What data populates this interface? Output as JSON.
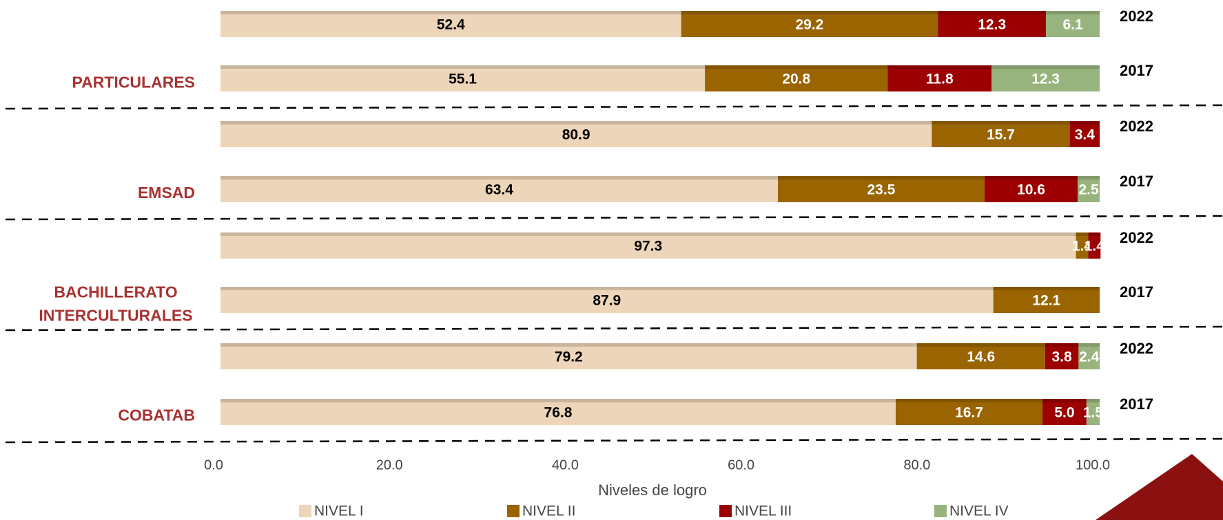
{
  "chart_data": {
    "type": "stacked_barh",
    "categories": [
      "2022",
      "2017",
      "2022",
      "2017",
      "2022",
      "2017",
      "2022",
      "2017"
    ],
    "groups": [
      [
        "PARTICULARES"
      ],
      [
        "EMSAD"
      ],
      [
        "BACHILLERATO",
        "INTERCULTURALES"
      ],
      [
        "COBATAB"
      ]
    ],
    "series": [
      {
        "name": "NIVEL I",
        "color": "#ecd5b8",
        "label_color": "#000000",
        "values": [
          52.4,
          55.1,
          80.9,
          63.4,
          97.3,
          87.9,
          79.2,
          76.8
        ],
        "value_labels": [
          "52.4",
          "55.1",
          "80.9",
          "63.4",
          "97.3",
          "87.9",
          "79.2",
          "76.8"
        ]
      },
      {
        "name": "NIVEL II",
        "color": "#9a6400",
        "label_color": "#ffffff",
        "values": [
          29.2,
          20.8,
          15.7,
          23.5,
          1.4,
          12.1,
          14.6,
          16.7
        ],
        "value_labels": [
          "29.2",
          "20.8",
          "15.7",
          "23.5",
          "1.4",
          "12.1",
          "14.6",
          "16.7"
        ]
      },
      {
        "name": "NIVEL III",
        "color": "#9c0000",
        "label_color": "#ffffff",
        "values": [
          12.3,
          11.8,
          3.4,
          10.6,
          1.4,
          null,
          3.8,
          5.0
        ],
        "value_labels": [
          "12.3",
          "11.8",
          "3.4",
          "10.6",
          "1.4",
          null,
          "3.8",
          "5.0"
        ]
      },
      {
        "name": "NIVEL IV",
        "color": "#98b47e",
        "label_color": "#ffffff",
        "values": [
          6.1,
          12.3,
          null,
          2.5,
          null,
          null,
          2.4,
          1.5
        ],
        "value_labels": [
          "6.1",
          "12.3",
          null,
          "2.5",
          null,
          null,
          "2.4",
          "1.5"
        ]
      }
    ],
    "x_label": "Niveles de logro",
    "xlim": [
      0,
      100
    ],
    "xticks": [
      {
        "value": 0,
        "label": "0.0"
      },
      {
        "value": 20,
        "label": "20.0"
      },
      {
        "value": 40,
        "label": "40.0"
      },
      {
        "value": 60,
        "label": "60.0"
      },
      {
        "value": 80,
        "label": "80.0"
      },
      {
        "value": 100,
        "label": "100.0"
      }
    ]
  }
}
